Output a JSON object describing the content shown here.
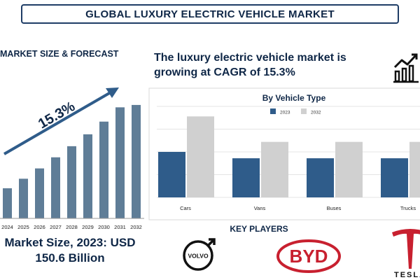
{
  "header": {
    "title": "GLOBAL LUXURY ELECTRIC VEHICLE MARKET"
  },
  "left_panel": {
    "heading": "MARKET SIZE & FORECAST",
    "growth_label": "15.3%",
    "market_size_line1": "Market Size, 2023: USD",
    "market_size_line2": "150.6 Billion"
  },
  "right_panel": {
    "cagr_text": "The luxury electric vehicle market is growing at CAGR of 15.3%",
    "trend_icon": "growth-chart-icon"
  },
  "key_players": {
    "title": "KEY PLAYERS",
    "items": [
      {
        "name": "volvo-logo",
        "text": "VOLVO"
      },
      {
        "name": "byd-logo",
        "text": "BYD"
      },
      {
        "name": "tesla-logo",
        "text": "TESLA"
      }
    ]
  },
  "chart_data": [
    {
      "type": "bar",
      "categories": [
        "2024",
        "2025",
        "2026",
        "2027",
        "2028",
        "2029",
        "2030",
        "2031",
        "2032"
      ],
      "values": [
        38,
        50,
        63,
        77,
        91,
        106,
        122,
        140,
        143
      ],
      "title": "",
      "xlabel": "",
      "ylabel": "",
      "color": "#5f7d97"
    },
    {
      "type": "bar",
      "title": "By Vehicle Type",
      "categories": [
        "Cars",
        "Vans",
        "Buses",
        "Trucks"
      ],
      "series": [
        {
          "name": "2023",
          "values": [
            50,
            43,
            43,
            43
          ],
          "color": "#2f5c8a"
        },
        {
          "name": "2032",
          "values": [
            89,
            61,
            61,
            61
          ],
          "color": "#d0d0d0"
        }
      ],
      "legend": "top-center",
      "grid": true
    }
  ]
}
